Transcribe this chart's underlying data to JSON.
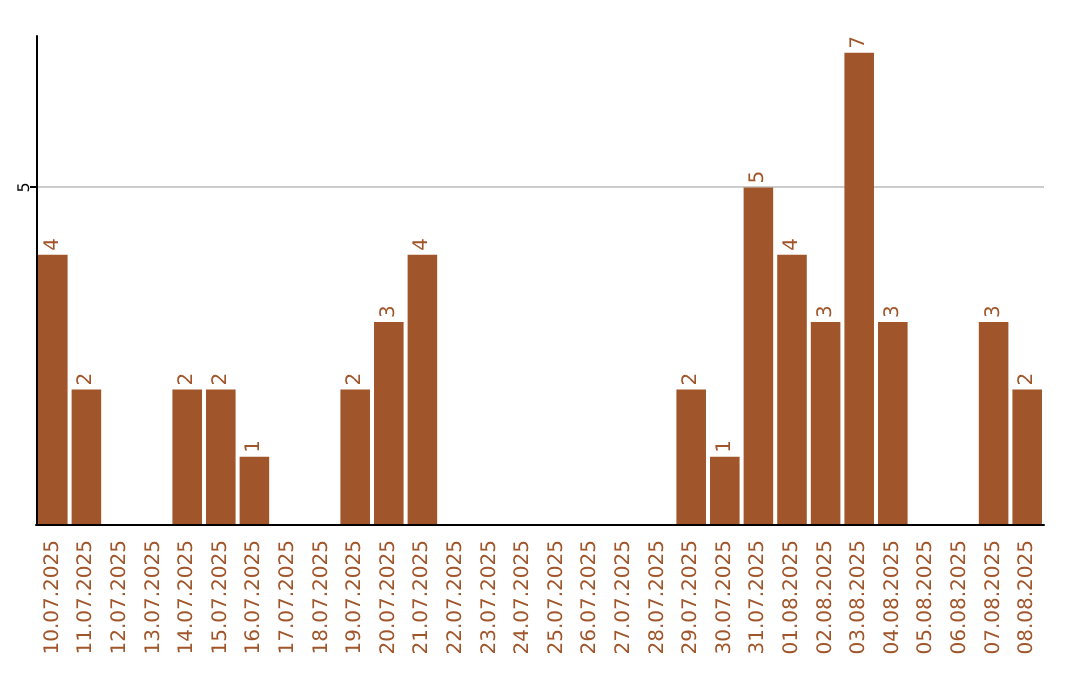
{
  "chart_data": {
    "type": "bar",
    "categories": [
      "10.07.2025",
      "11.07.2025",
      "12.07.2025",
      "13.07.2025",
      "14.07.2025",
      "15.07.2025",
      "16.07.2025",
      "17.07.2025",
      "18.07.2025",
      "19.07.2025",
      "20.07.2025",
      "21.07.2025",
      "22.07.2025",
      "23.07.2025",
      "24.07.2025",
      "25.07.2025",
      "26.07.2025",
      "27.07.2025",
      "28.07.2025",
      "29.07.2025",
      "30.07.2025",
      "31.07.2025",
      "01.08.2025",
      "02.08.2025",
      "03.08.2025",
      "04.08.2025",
      "05.08.2025",
      "06.08.2025",
      "07.08.2025",
      "08.08.2025"
    ],
    "values": [
      4,
      2,
      0,
      0,
      2,
      2,
      1,
      0,
      0,
      2,
      3,
      4,
      0,
      0,
      0,
      0,
      0,
      0,
      0,
      2,
      1,
      5,
      4,
      3,
      7,
      3,
      0,
      0,
      3,
      2
    ],
    "value_labels": [
      "4",
      "2",
      null,
      null,
      "2",
      "2",
      "1",
      null,
      null,
      "2",
      "3",
      "4",
      null,
      null,
      null,
      null,
      null,
      null,
      null,
      "2",
      "1",
      "5",
      "4",
      "3",
      "7",
      "3",
      null,
      null,
      "3",
      "2"
    ],
    "color": "#a0552a",
    "ylim": [
      0,
      7.25
    ],
    "yticks": [
      5
    ],
    "grid": "y"
  }
}
